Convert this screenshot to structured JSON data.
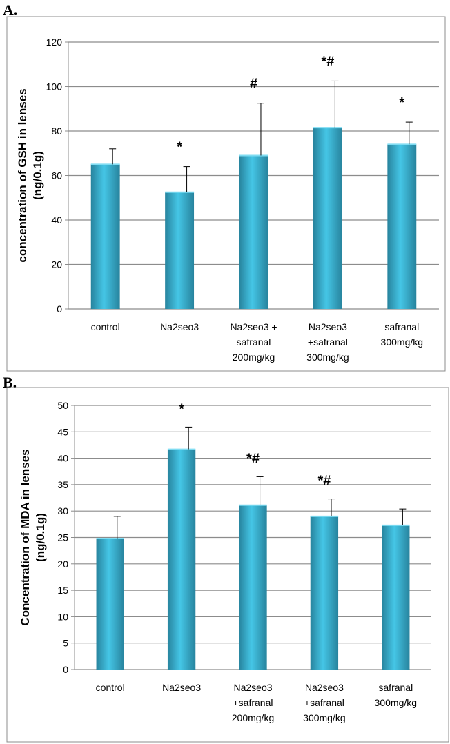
{
  "panels": [
    {
      "label": "A."
    },
    {
      "label": "B."
    }
  ],
  "colors": {
    "bar_light": "#45c6e6",
    "bar_dark": "#27839d",
    "grid": "#8c8c8c",
    "frame": "#8c8c8c"
  },
  "chart_data": [
    {
      "type": "bar",
      "title": "",
      "ylabel": "concentration of GSH in lenses (ng/0.1g)",
      "ylabel_lines": [
        "concentration of GSH in lenses",
        "(ng/0.1g)"
      ],
      "xlabel": "",
      "categories": [
        [
          "control"
        ],
        [
          "Na2seo3"
        ],
        [
          "Na2seo3 +",
          "safranal",
          "200mg/kg"
        ],
        [
          "Na2seo3",
          "+safranal",
          "300mg/kg"
        ],
        [
          "safranal",
          "300mg/kg"
        ]
      ],
      "values": [
        65,
        52.5,
        69,
        81.5,
        74
      ],
      "error_upper": [
        72,
        64,
        92.5,
        102.5,
        84
      ],
      "annotations": [
        "",
        "*",
        "#",
        "*#",
        "*"
      ],
      "ylim": [
        0,
        120
      ],
      "yticks": [
        0,
        20,
        40,
        60,
        80,
        100,
        120
      ],
      "grid": true,
      "legend": "none"
    },
    {
      "type": "bar",
      "title": "",
      "ylabel": "Concentration of MDA in lenses (ng/0.1g)",
      "ylabel_lines": [
        "Concentration of MDA in lenses",
        "(ng/0.1g)"
      ],
      "xlabel": "",
      "categories": [
        [
          "control"
        ],
        [
          "Na2seo3"
        ],
        [
          "Na2seo3",
          "+safranal",
          "200mg/kg"
        ],
        [
          "Na2seo3",
          "+safranal",
          "300mg/kg"
        ],
        [
          "safranal",
          "300mg/kg"
        ]
      ],
      "values": [
        24.8,
        41.7,
        31.1,
        29,
        27.3
      ],
      "error_upper": [
        29,
        45.9,
        36.5,
        32.3,
        30.4
      ],
      "annotations": [
        "",
        "*",
        "*#",
        "*#",
        ""
      ],
      "ylim": [
        0,
        50
      ],
      "yticks": [
        0,
        5,
        10,
        15,
        20,
        25,
        30,
        35,
        40,
        45,
        50
      ],
      "grid": true,
      "legend": "none"
    }
  ]
}
